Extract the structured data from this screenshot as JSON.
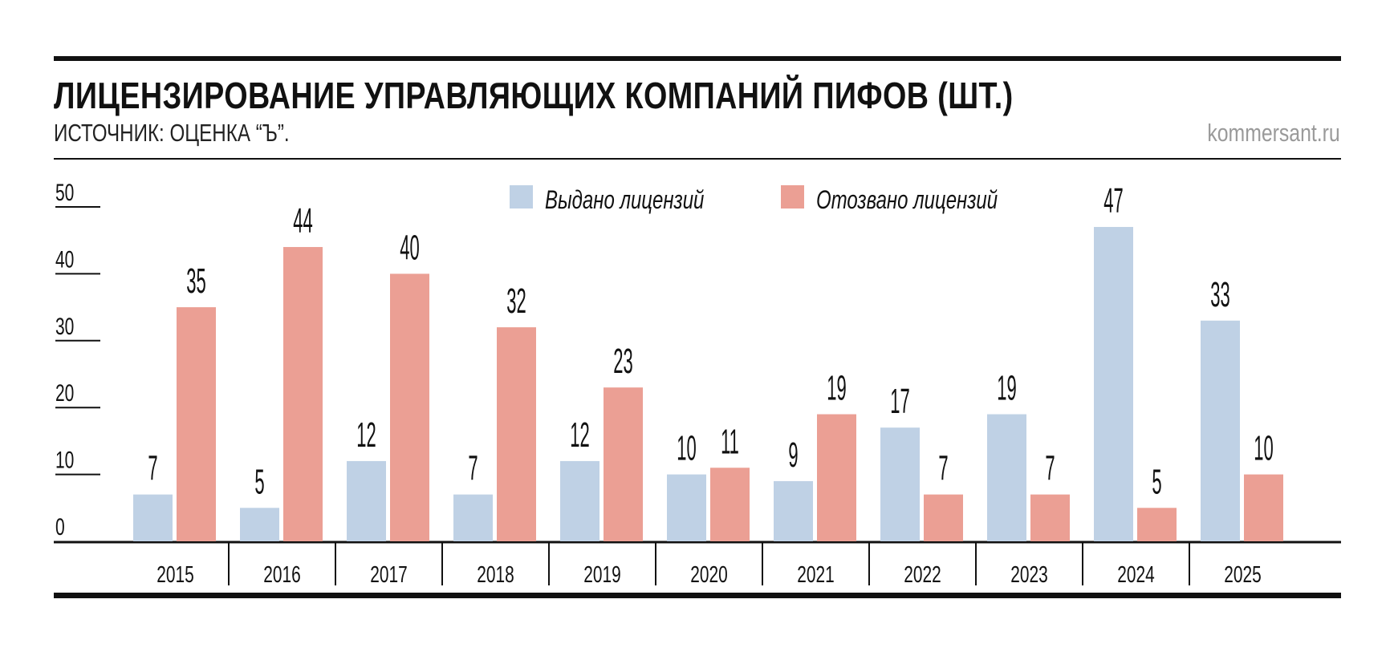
{
  "header": {
    "title": "ЛИЦЕНЗИРОВАНИЕ УПРАВЛЯЮЩИХ КОМПАНИЙ ПИФОВ (ШТ.)",
    "subtitle": "ИСТОЧНИК: ОЦЕНКА “Ъ”.",
    "brand": "kommersant.ru"
  },
  "chart_data": {
    "type": "bar",
    "title": "ЛИЦЕНЗИРОВАНИЕ УПРАВЛЯЮЩИХ КОМПАНИЙ ПИФОВ (ШТ.)",
    "categories": [
      "2015",
      "2016",
      "2017",
      "2018",
      "2019",
      "2020",
      "2021",
      "2022",
      "2023",
      "2024",
      "2025"
    ],
    "series": [
      {
        "name": "Выдано лицензий",
        "color": "#bfd1e5",
        "values": [
          7,
          5,
          12,
          7,
          12,
          10,
          9,
          17,
          19,
          47,
          33
        ]
      },
      {
        "name": "Отозвано лицензий",
        "color": "#eb9f94",
        "values": [
          35,
          44,
          40,
          32,
          23,
          11,
          19,
          7,
          7,
          5,
          10
        ]
      }
    ],
    "yticks": [
      "0",
      "10",
      "20",
      "30",
      "40",
      "50"
    ],
    "ylim": [
      0,
      50
    ],
    "xlabel": "",
    "ylabel": "",
    "grid": false,
    "legend": "top-center",
    "data_labels": true
  }
}
